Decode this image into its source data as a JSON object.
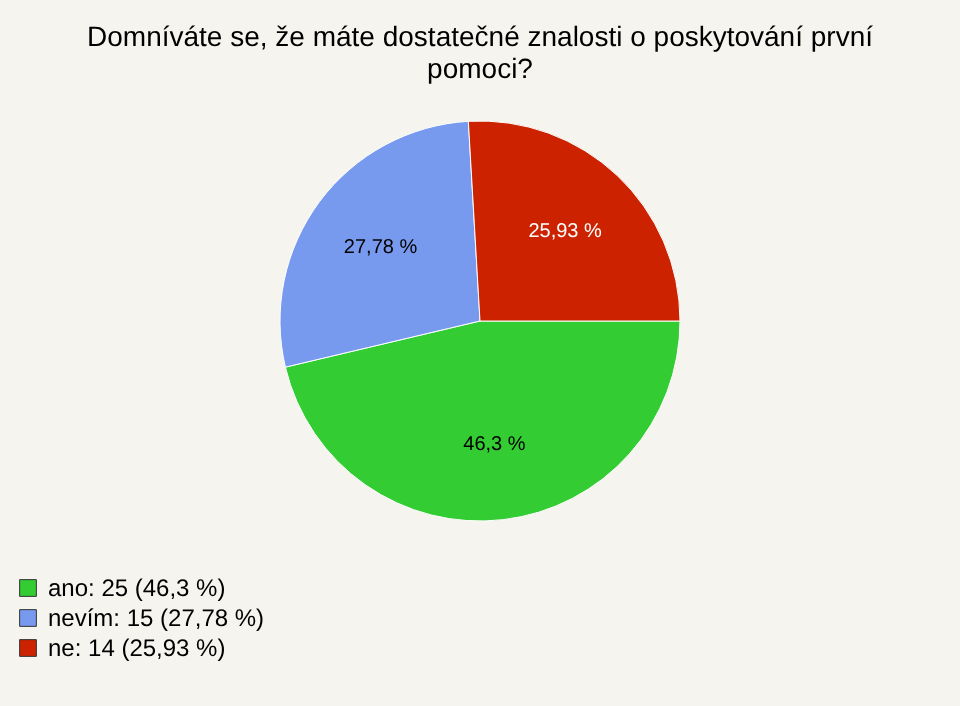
{
  "chart_data": {
    "type": "pie",
    "title": "Domníváte se, že máte dostatečné znalosti o poskytování první pomoci?",
    "categories": [
      "ano: 25 (46,3 %)",
      "nevím: 15 (27,78 %)",
      "ne: 14 (25,93 %)"
    ],
    "values": [
      46.3,
      27.78,
      25.93
    ],
    "value_labels": [
      "46,3 %",
      "27,78 %",
      "25,93 %"
    ],
    "colors": [
      "#33cc33",
      "#7799ee",
      "#cc2200"
    ],
    "legend": "bottom left"
  }
}
